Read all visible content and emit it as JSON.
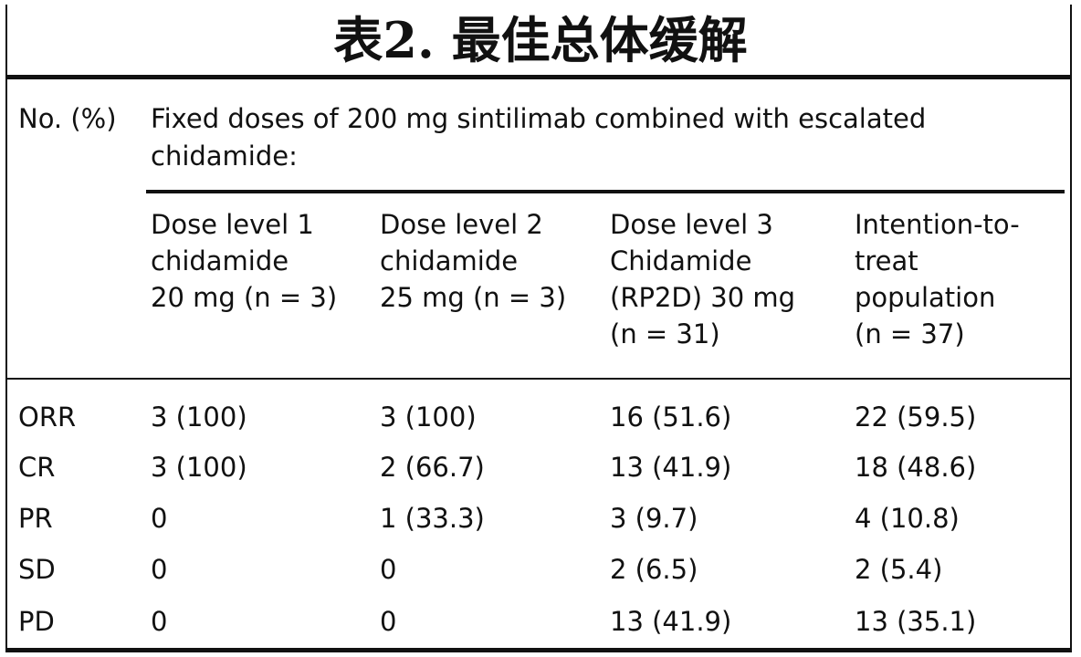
{
  "title": "表2. 最佳总体缓解",
  "header": {
    "row_label": "No. (%)",
    "group_line1": "Fixed doses of 200 mg sintilimab combined with escalated",
    "group_line2": "chidamide:"
  },
  "columns": [
    {
      "lines": [
        "Dose level 1",
        "chidamide",
        "20 mg (n = 3)"
      ]
    },
    {
      "lines": [
        "Dose level 2",
        "chidamide",
        "25 mg (n = 3)"
      ]
    },
    {
      "lines": [
        "Dose level 3",
        "Chidamide",
        "(RP2D) 30 mg",
        "(n = 31)"
      ]
    },
    {
      "lines": [
        "Intention-to-",
        "treat",
        "population",
        "(n = 37)"
      ]
    }
  ],
  "rows": [
    {
      "label": "ORR",
      "cells": [
        "3 (100)",
        "3 (100)",
        "16 (51.6)",
        "22 (59.5)"
      ]
    },
    {
      "label": "CR",
      "cells": [
        "3 (100)",
        "2 (66.7)",
        "13 (41.9)",
        "18 (48.6)"
      ]
    },
    {
      "label": "PR",
      "cells": [
        "0",
        "1 (33.3)",
        "3 (9.7)",
        "4 (10.8)"
      ]
    },
    {
      "label": "SD",
      "cells": [
        "0",
        "0",
        "2 (6.5)",
        "2 (5.4)"
      ]
    },
    {
      "label": "PD",
      "cells": [
        "0",
        "0",
        "13 (41.9)",
        "13 (35.1)"
      ]
    }
  ]
}
